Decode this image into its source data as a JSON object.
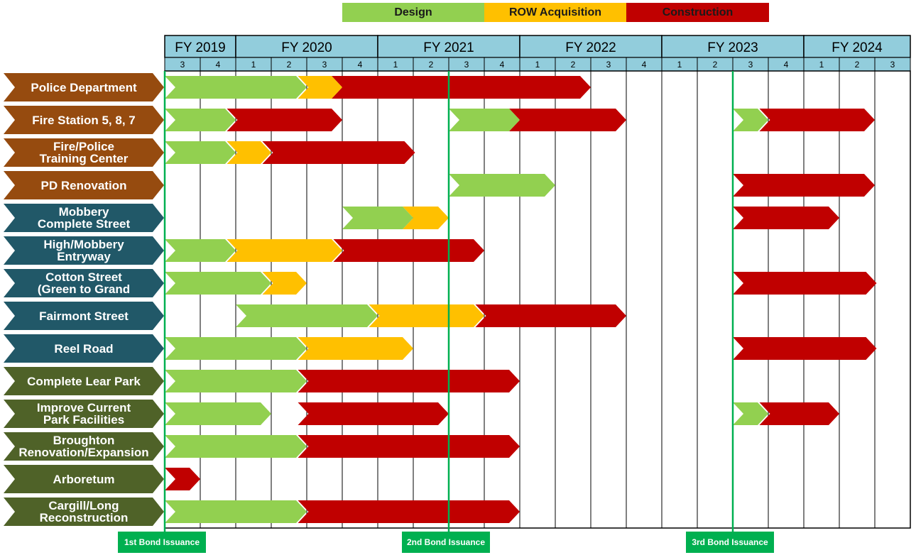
{
  "chart_data": {
    "type": "gantt",
    "legend": [
      {
        "name": "Design",
        "color": "#92d050"
      },
      {
        "name": "ROW Acquisition",
        "color": "#ffc000"
      },
      {
        "name": "Construction",
        "color": "#c00000"
      }
    ],
    "fiscal_years": [
      {
        "label": "FY 2019",
        "quarters": [
          "3",
          "4"
        ]
      },
      {
        "label": "FY 2020",
        "quarters": [
          "1",
          "2",
          "3",
          "4"
        ]
      },
      {
        "label": "FY 2021",
        "quarters": [
          "1",
          "2",
          "3",
          "4"
        ]
      },
      {
        "label": "FY 2022",
        "quarters": [
          "1",
          "2",
          "3",
          "4"
        ]
      },
      {
        "label": "FY 2023",
        "quarters": [
          "1",
          "2",
          "3",
          "4"
        ]
      },
      {
        "label": "FY 2024",
        "quarters": [
          "1",
          "2",
          "3"
        ]
      }
    ],
    "group_colors": {
      "public_safety": "#964b0f",
      "streets": "#215868",
      "parks": "#4f6228"
    },
    "header_color": "#92cddc",
    "projects": [
      {
        "name": "Police Department",
        "group": "public_safety",
        "phases": [
          {
            "phase": "Design",
            "start": 0,
            "end": 4
          },
          {
            "phase": "ROW Acquisition",
            "start": 3.75,
            "end": 5
          },
          {
            "phase": "Construction",
            "start": 4.7,
            "end": 12
          }
        ]
      },
      {
        "name": "Fire Station 5, 8, 7",
        "group": "public_safety",
        "phases": [
          {
            "phase": "Design",
            "start": 0,
            "end": 2
          },
          {
            "phase": "Construction",
            "start": 1.75,
            "end": 5
          },
          {
            "phase": "Design",
            "start": 8,
            "end": 10
          },
          {
            "phase": "Construction",
            "start": 9.7,
            "end": 13
          },
          {
            "phase": "Design",
            "start": 16,
            "end": 17
          },
          {
            "phase": "Construction",
            "start": 16.75,
            "end": 20
          }
        ]
      },
      {
        "name": "Fire/Police Training Center",
        "group": "public_safety",
        "phases": [
          {
            "phase": "Design",
            "start": 0,
            "end": 2
          },
          {
            "phase": "ROW Acquisition",
            "start": 1.75,
            "end": 3
          },
          {
            "phase": "Construction",
            "start": 2.75,
            "end": 7.05
          }
        ]
      },
      {
        "name": "PD Renovation",
        "group": "public_safety",
        "phases": [
          {
            "phase": "Design",
            "start": 8,
            "end": 11
          },
          {
            "phase": "Construction",
            "start": 16,
            "end": 20
          }
        ]
      },
      {
        "name": "Mobbery Complete Street",
        "group": "streets",
        "phases": [
          {
            "phase": "Design",
            "start": 5,
            "end": 7
          },
          {
            "phase": "ROW Acquisition",
            "start": 6.7,
            "end": 8
          },
          {
            "phase": "Construction",
            "start": 16,
            "end": 19
          }
        ]
      },
      {
        "name": "High/Mobbery Entryway",
        "group": "streets",
        "phases": [
          {
            "phase": "Design",
            "start": 0,
            "end": 2
          },
          {
            "phase": "ROW Acquisition",
            "start": 1.75,
            "end": 5
          },
          {
            "phase": "Construction",
            "start": 4.75,
            "end": 9
          }
        ]
      },
      {
        "name": "Cotton Street (Green to Grand",
        "group": "streets",
        "phases": [
          {
            "phase": "Design",
            "start": 0,
            "end": 3
          },
          {
            "phase": "ROW Acquisition",
            "start": 2.75,
            "end": 4
          },
          {
            "phase": "Construction",
            "start": 16,
            "end": 20.05
          }
        ]
      },
      {
        "name": "Fairmont Street",
        "group": "streets",
        "phases": [
          {
            "phase": "Design",
            "start": 2,
            "end": 6
          },
          {
            "phase": "ROW Acquisition",
            "start": 5.75,
            "end": 9
          },
          {
            "phase": "Construction",
            "start": 8.75,
            "end": 13
          }
        ]
      },
      {
        "name": "Reel Road",
        "group": "streets",
        "phases": [
          {
            "phase": "Design",
            "start": 0,
            "end": 4
          },
          {
            "phase": "ROW Acquisition",
            "start": 3.75,
            "end": 7
          },
          {
            "phase": "Construction",
            "start": 16,
            "end": 20.05
          }
        ]
      },
      {
        "name": "Complete Lear Park",
        "group": "parks",
        "phases": [
          {
            "phase": "Design",
            "start": 0,
            "end": 4
          },
          {
            "phase": "Construction",
            "start": 3.75,
            "end": 10
          }
        ]
      },
      {
        "name": "Improve Current Park Facilities",
        "group": "parks",
        "phases": [
          {
            "phase": "Design",
            "start": 0,
            "end": 3
          },
          {
            "phase": "Construction",
            "start": 3.75,
            "end": 8
          },
          {
            "phase": "Design",
            "start": 16,
            "end": 17
          },
          {
            "phase": "Construction",
            "start": 16.75,
            "end": 19
          }
        ]
      },
      {
        "name": "Broughton Renovation/Expansion",
        "group": "parks",
        "phases": [
          {
            "phase": "Design",
            "start": 0,
            "end": 4
          },
          {
            "phase": "Construction",
            "start": 3.75,
            "end": 10
          }
        ]
      },
      {
        "name": "Arboretum",
        "group": "parks",
        "phases": [
          {
            "phase": "Construction",
            "start": 0,
            "end": 1
          }
        ]
      },
      {
        "name": "Cargill/Long Reconstruction",
        "group": "parks",
        "phases": [
          {
            "phase": "Design",
            "start": 0,
            "end": 4
          },
          {
            "phase": "Construction",
            "start": 3.75,
            "end": 10
          }
        ]
      }
    ],
    "bond_issuances": [
      {
        "label": "1st Bond Issuance",
        "quarter": 0
      },
      {
        "label": "2nd Bond Issuance",
        "quarter": 8
      },
      {
        "label": "3rd Bond Issuance",
        "quarter": 16
      }
    ]
  }
}
